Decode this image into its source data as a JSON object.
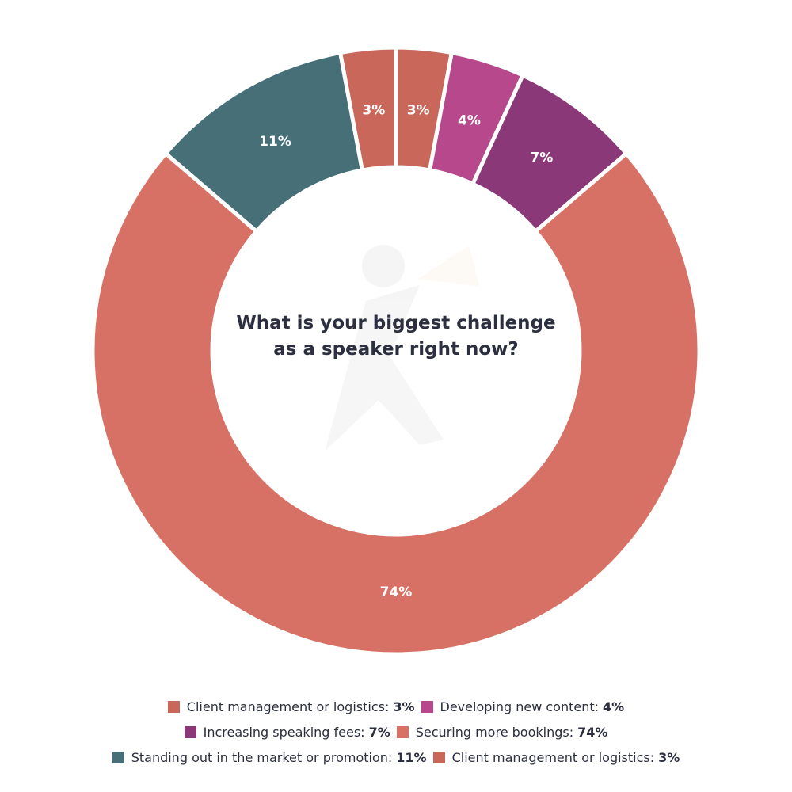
{
  "chart_data": {
    "type": "pie",
    "title": "What is your biggest challenge as a speaker right now?",
    "slices": [
      {
        "name": "Client management or logistics",
        "value": 3,
        "label": "3%",
        "color": "#c9685a"
      },
      {
        "name": "Developing new content",
        "value": 4,
        "label": "4%",
        "color": "#b6488b"
      },
      {
        "name": "Increasing speaking fees",
        "value": 7,
        "label": "7%",
        "color": "#8a3878"
      },
      {
        "name": "Securing more bookings",
        "value": 74,
        "label": "74%",
        "color": "#d87165"
      },
      {
        "name": "Standing out in the market or promotion",
        "value": 11,
        "label": "11%",
        "color": "#466f78"
      },
      {
        "name": "Client management or logistics",
        "value": 3,
        "label": "3%",
        "color": "#c9685a"
      }
    ],
    "legend_position": "bottom"
  },
  "legend": {
    "rows": [
      [
        {
          "text": "Client management or logistics:",
          "value": "3%",
          "color": "#c9685a"
        },
        {
          "text": "Developing new content:",
          "value": "4%",
          "color": "#b6488b"
        }
      ],
      [
        {
          "text": "Increasing speaking fees:",
          "value": "7%",
          "color": "#8a3878"
        },
        {
          "text": "Securing more bookings:",
          "value": "74%",
          "color": "#d87165"
        }
      ],
      [
        {
          "text": "Standing out in the market or promotion:",
          "value": "11%",
          "color": "#466f78"
        },
        {
          "text": "Client management or logistics:",
          "value": "3%",
          "color": "#c9685a"
        }
      ]
    ]
  }
}
